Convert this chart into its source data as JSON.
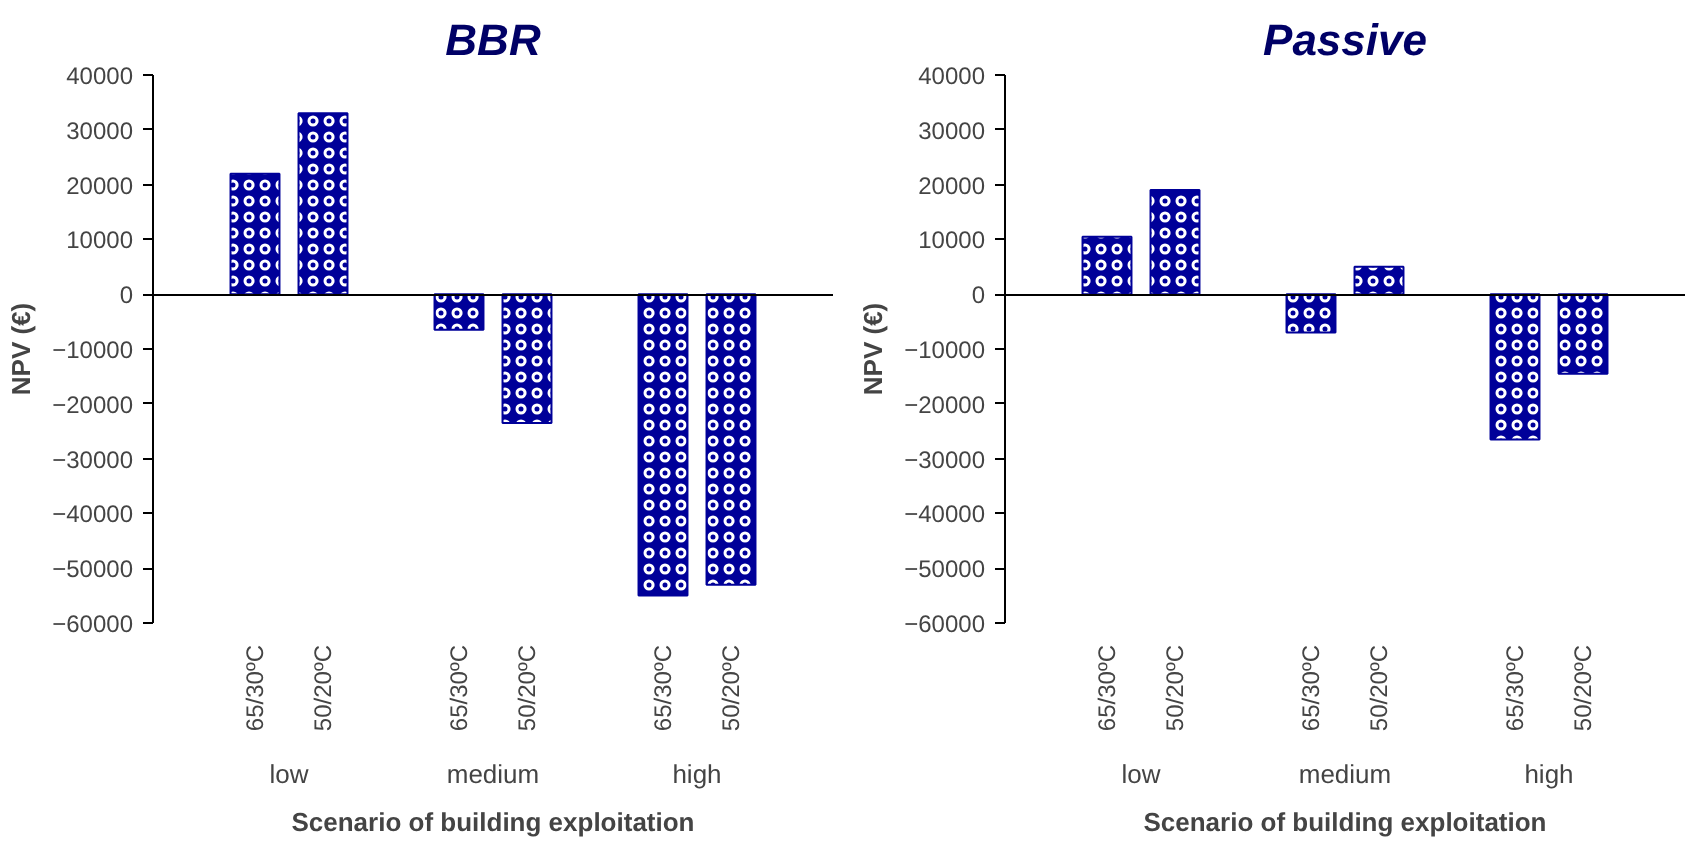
{
  "chart_data": [
    {
      "type": "bar",
      "title": "BBR",
      "xlabel": "Scenario of building exploitation",
      "ylabel": "NPV (€)",
      "categories": [
        "65/30ºC",
        "50/20ºC",
        "65/30ºC",
        "50/20ºC",
        "65/30ºC",
        "50/20ºC"
      ],
      "values": [
        22000,
        33000,
        -6500,
        -23500,
        -55000,
        -53000
      ],
      "color": "#000099",
      "ylim": [
        -60000,
        40000
      ],
      "yticks": [
        -60000,
        -50000,
        -40000,
        -30000,
        -20000,
        -10000,
        0,
        10000,
        20000,
        30000,
        40000
      ],
      "annotations": [
        "low",
        "medium",
        "high"
      ]
    },
    {
      "type": "bar",
      "title": "Passive",
      "xlabel": "Scenario of building exploitation",
      "ylabel": "NPV (€)",
      "categories": [
        "65/30ºC",
        "50/20ºC",
        "65/30ºC",
        "50/20ºC",
        "65/30ºC",
        "50/20ºC"
      ],
      "values": [
        10500,
        19000,
        -7000,
        5000,
        -26500,
        -14500
      ],
      "color": "#000099",
      "ylim": [
        -60000,
        40000
      ],
      "yticks": [
        -60000,
        -50000,
        -40000,
        -30000,
        -20000,
        -10000,
        0,
        10000,
        20000,
        30000,
        40000
      ],
      "annotations": [
        "low",
        "medium",
        "high"
      ]
    }
  ]
}
